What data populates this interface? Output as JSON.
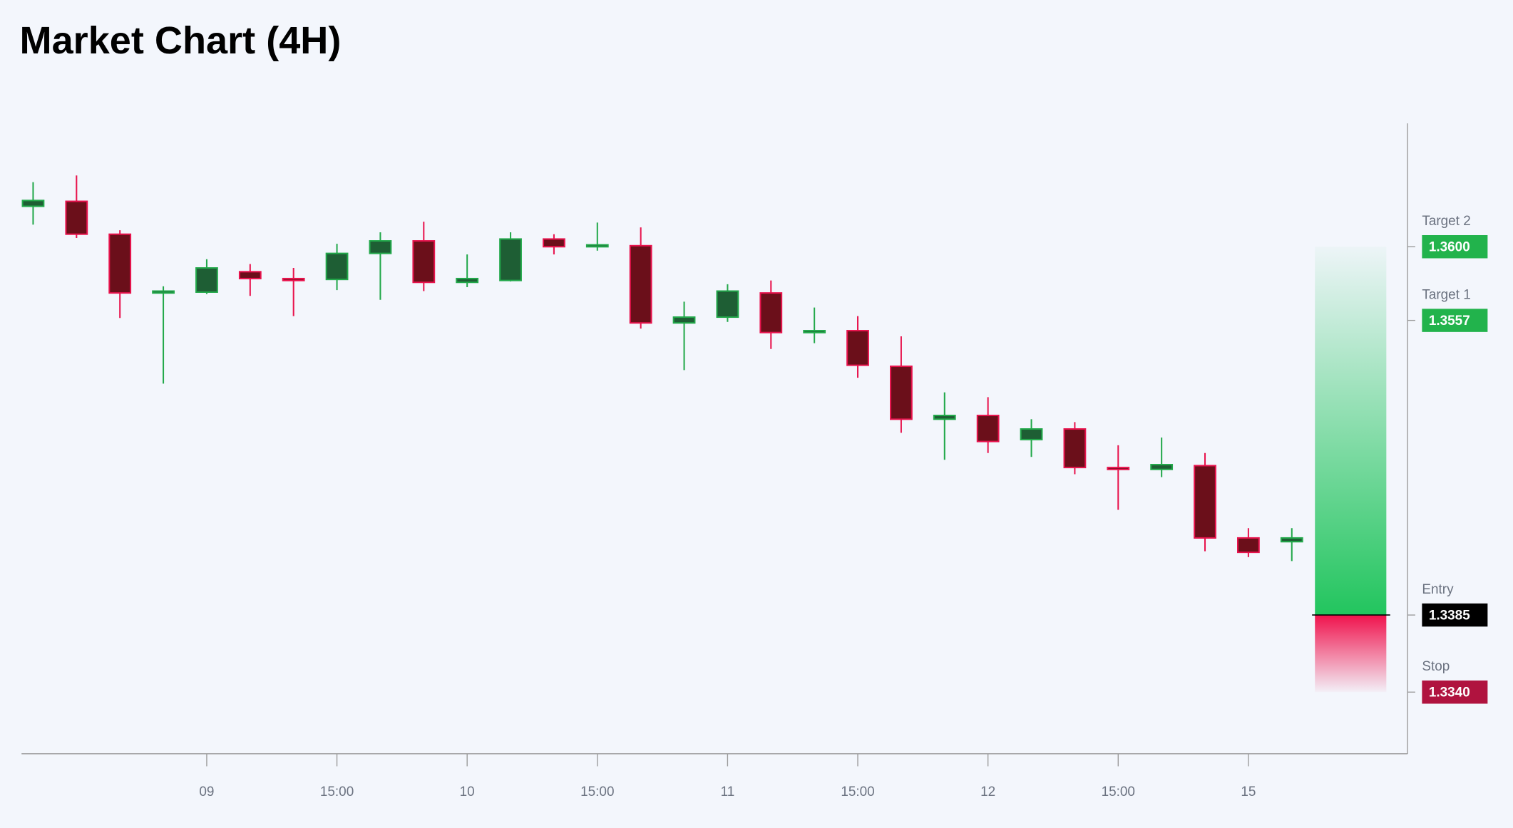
{
  "chart_data": {
    "type": "candlestick",
    "title": "Market Chart (4H)",
    "categories": [
      null,
      null,
      null,
      null,
      "09",
      null,
      null,
      "15:00",
      null,
      null,
      "10",
      null,
      null,
      "15:00",
      null,
      null,
      "11",
      null,
      null,
      "15:00",
      null,
      null,
      "12",
      null,
      null,
      "15:00",
      null,
      null,
      "15",
      null
    ],
    "open": [
      1.36236,
      1.36265,
      1.36073,
      1.3573,
      1.35735,
      1.35854,
      1.35814,
      1.35809,
      1.35961,
      1.36034,
      1.35792,
      1.35803,
      1.36045,
      1.36,
      1.36006,
      1.35555,
      1.35589,
      1.3573,
      1.35499,
      1.3551,
      1.35302,
      1.34993,
      1.35015,
      1.34874,
      1.34936,
      1.34711,
      1.347,
      1.34722,
      1.343,
      1.34278
    ],
    "high": [
      1.36377,
      1.36416,
      1.36096,
      1.35769,
      1.35927,
      1.35899,
      1.35876,
      1.36017,
      1.36084,
      1.36146,
      1.35955,
      1.36084,
      1.36073,
      1.36141,
      1.36113,
      1.35679,
      1.35781,
      1.35803,
      1.35645,
      1.35595,
      1.35477,
      1.3515,
      1.35122,
      1.34993,
      1.34976,
      1.34841,
      1.34886,
      1.34796,
      1.34357,
      1.34357
    ],
    "low": [
      1.36129,
      1.36051,
      1.35584,
      1.35201,
      1.35724,
      1.35713,
      1.35595,
      1.35747,
      1.3569,
      1.35741,
      1.35764,
      1.35797,
      1.35955,
      1.35977,
      1.35522,
      1.3528,
      1.35561,
      1.35403,
      1.35437,
      1.35235,
      1.34914,
      1.34756,
      1.34796,
      1.34773,
      1.34672,
      1.34464,
      1.34655,
      1.34222,
      1.34188,
      1.34165
    ],
    "close": [
      1.3627,
      1.36073,
      1.3573,
      1.35741,
      1.35876,
      1.35814,
      1.35803,
      1.35961,
      1.36034,
      1.35792,
      1.35814,
      1.36045,
      1.36,
      1.36011,
      1.35555,
      1.35589,
      1.35741,
      1.35499,
      1.3551,
      1.35308,
      1.34993,
      1.35015,
      1.34863,
      1.34936,
      1.34711,
      1.347,
      1.34728,
      1.343,
      1.34216,
      1.343
    ],
    "up_color": "#22a84a",
    "up_fill": "#1e5e34",
    "down_color": "#e8134d",
    "down_fill": "#6b0f1a",
    "ylim": [
      1.3304,
      1.3672
    ],
    "levels": [
      {
        "name": "Target 2",
        "value": 1.36,
        "value_label": "1.3600",
        "color": "#22b34c"
      },
      {
        "name": "Target 1",
        "value": 1.3557,
        "value_label": "1.3557",
        "color": "#22b34c"
      },
      {
        "name": "Entry",
        "value": 1.3385,
        "value_label": "1.3385",
        "color": "#000000"
      },
      {
        "name": "Stop",
        "value": 1.334,
        "value_label": "1.3340",
        "color": "#b0133f"
      }
    ]
  }
}
